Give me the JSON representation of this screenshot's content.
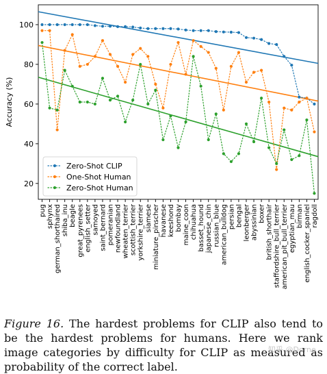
{
  "chart_data": {
    "type": "line",
    "ylabel": "Accuracy (%)",
    "xlabel": "",
    "ylim": [
      12,
      110
    ],
    "yticks": [
      20,
      40,
      60,
      80,
      100
    ],
    "grid": false,
    "legend_position": "lower-left",
    "categories": [
      "pug",
      "sphynx",
      "german_shorthaired",
      "shiba_inu",
      "beagle",
      "great_pyrenees",
      "english_setter",
      "samoyed",
      "saint_bernard",
      "pomeranian",
      "newfoundland",
      "wheaten_terrier",
      "scottish_terrier",
      "yorkshire_terrier",
      "siamese",
      "miniature_pinscher",
      "havanese",
      "keeshond",
      "bombay",
      "maine_coon",
      "chihuahua",
      "basset_hound",
      "japanese_chin",
      "russian_blue",
      "american_bulldog",
      "persian",
      "bengal",
      "leonberger",
      "abyssinian",
      "boxer",
      "british_shorthair",
      "staffordshire_bull_terrier",
      "american_pit_bull_terrier",
      "egyptian_mau",
      "birman",
      "english_cocker_spaniel",
      "ragdoll"
    ],
    "series": [
      {
        "name": "Zero-Shot CLIP",
        "color": "#1f77b4",
        "values": [
          100,
          100,
          100,
          100,
          100,
          100,
          100,
          99.5,
          99.2,
          99.2,
          99,
          99,
          98.8,
          98.3,
          98,
          98,
          98,
          98,
          97.8,
          97.3,
          97,
          97,
          97,
          96.5,
          96.3,
          96.2,
          96,
          93.5,
          93.2,
          92.5,
          90.5,
          90,
          84,
          79.6,
          63.5,
          63,
          60
        ]
      },
      {
        "name": "One-Shot Human",
        "color": "#ff7f0e",
        "values": [
          97,
          97,
          47,
          87,
          95,
          79,
          80,
          84,
          92,
          85,
          79,
          71,
          85,
          88,
          84,
          70,
          58,
          80,
          91,
          75,
          92,
          89,
          86,
          78,
          57,
          79,
          86,
          71,
          76,
          77,
          61,
          27,
          58,
          57,
          61,
          63,
          46
        ]
      },
      {
        "name": "Zero-Shot Human",
        "color": "#2ca02c",
        "values": [
          91,
          58,
          57,
          77,
          69,
          61,
          61,
          60,
          73,
          62,
          64,
          51,
          62,
          80,
          60,
          67,
          42,
          54,
          38,
          51,
          84,
          69,
          42,
          55,
          35,
          31,
          35,
          50,
          41,
          63,
          38,
          30,
          47,
          32,
          34,
          52,
          15
        ]
      }
    ],
    "trendlines": [
      {
        "series": "Zero-Shot CLIP",
        "color": "#1f77b4",
        "start": 106.5,
        "end": 80.5
      },
      {
        "series": "One-Shot Human",
        "color": "#ff7f0e",
        "start": 89.5,
        "end": 61.5
      },
      {
        "series": "Zero-Shot Human",
        "color": "#2ca02c",
        "start": 73.5,
        "end": 33.5
      }
    ]
  },
  "caption": {
    "lead": "Figure 16.",
    "text": " The hardest problems for CLIP also tend to be the hardest problems for humans. Here we rank image categories by difficulty for CLIP as measured as probability of the correct label."
  },
  "watermark": "知乎 @Dorne"
}
